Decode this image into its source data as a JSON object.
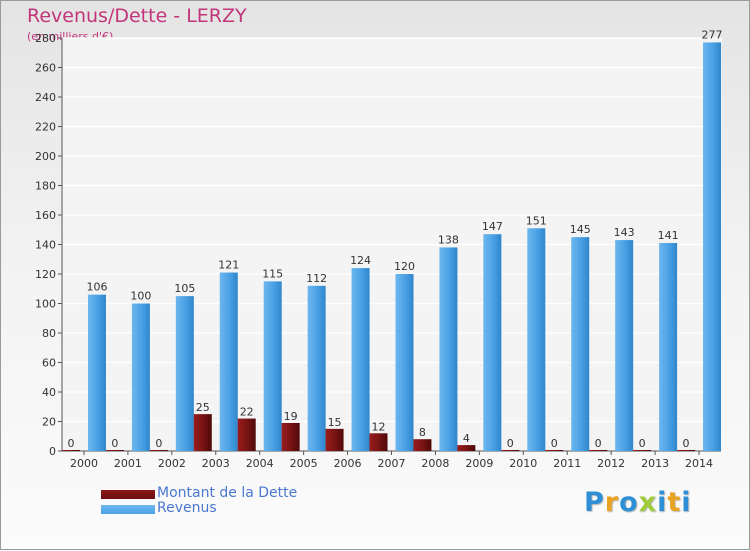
{
  "title": "Revenus/Dette - LERZY",
  "subtitle": "(en milliers d'€)",
  "legend": [
    {
      "label": "Montant de la Dette",
      "color": "#6b0f10"
    },
    {
      "label": "Revenus",
      "color": "#4da3e6"
    }
  ],
  "logo": {
    "text": "Proxiti",
    "letters": [
      {
        "ch": "P",
        "color": "#2e8fd6"
      },
      {
        "ch": "r",
        "color": "#e8a321"
      },
      {
        "ch": "o",
        "color": "#2e8fd6"
      },
      {
        "ch": "x",
        "color": "#9fcc3b"
      },
      {
        "ch": "i",
        "color": "#2e8fd6"
      },
      {
        "ch": "t",
        "color": "#e8a321"
      },
      {
        "ch": "i",
        "color": "#2e8fd6"
      }
    ]
  },
  "chart_data": {
    "type": "bar",
    "categories": [
      "2000",
      "2001",
      "2002",
      "2003",
      "2004",
      "2005",
      "2006",
      "2007",
      "2008",
      "2009",
      "2010",
      "2011",
      "2012",
      "2013",
      "2014"
    ],
    "series": [
      {
        "name": "Montant de la Dette",
        "color": "#6b0f10",
        "values": [
          0,
          0,
          0,
          25,
          22,
          19,
          15,
          12,
          8,
          4,
          0,
          0,
          0,
          0,
          0
        ]
      },
      {
        "name": "Revenus",
        "color": "#4da3e6",
        "values": [
          106,
          100,
          105,
          121,
          115,
          112,
          124,
          120,
          138,
          147,
          151,
          145,
          143,
          141,
          277
        ]
      }
    ],
    "ylim": [
      0,
      280
    ],
    "yticks": [
      0,
      20,
      40,
      60,
      80,
      100,
      120,
      140,
      160,
      180,
      200,
      220,
      240,
      260,
      280
    ],
    "grid": true,
    "legend_position": "bottom-left"
  }
}
